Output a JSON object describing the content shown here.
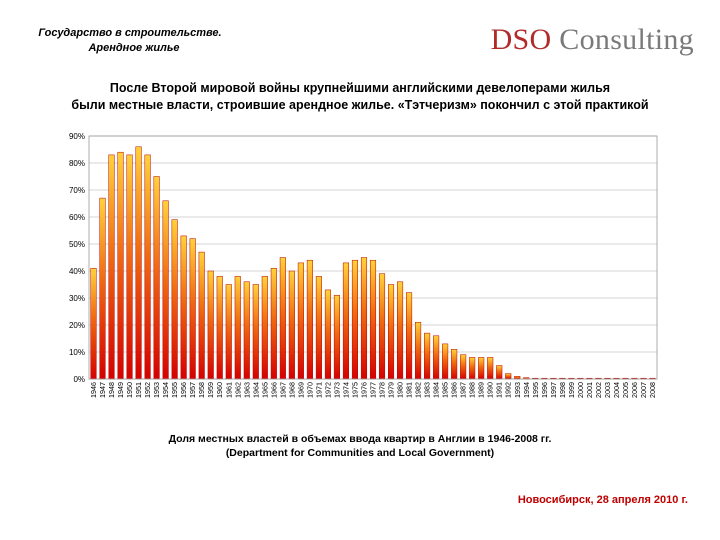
{
  "header": {
    "line1": "Государство в строительстве.",
    "line2": "Арендное жилье"
  },
  "logo": {
    "part1": "DSO",
    "part2": "Consulting"
  },
  "title": {
    "line1": "После Второй мировой войны крупнейшими английскими девелоперами жилья",
    "line2": "были местные власти, строившие арендное жилье. «Тэтчеризм» покончил с этой практикой"
  },
  "caption": {
    "line1": "Доля местных властей в объемах ввода квартир в Англии в 1946-2008 гг.",
    "line2": "(Department for Communities and Local Government)"
  },
  "footer": "Новосибирск, 28 апреля 2010 г.",
  "chart_data": {
    "type": "bar",
    "title": "",
    "xlabel": "",
    "ylabel": "",
    "ylim": [
      0,
      90
    ],
    "yticks": [
      0,
      10,
      20,
      30,
      40,
      50,
      60,
      70,
      80,
      90
    ],
    "ytick_labels": [
      "0%",
      "10%",
      "20%",
      "30%",
      "40%",
      "50%",
      "60%",
      "70%",
      "80%",
      "90%"
    ],
    "grid": true,
    "legend": "none",
    "bar_colors": {
      "top": "#ffd23a",
      "bottom": "#d40000",
      "outline": "#b80000"
    },
    "categories": [
      "1946",
      "1947",
      "1948",
      "1949",
      "1950",
      "1951",
      "1952",
      "1953",
      "1954",
      "1955",
      "1956",
      "1957",
      "1958",
      "1959",
      "1960",
      "1961",
      "1962",
      "1963",
      "1964",
      "1965",
      "1966",
      "1967",
      "1968",
      "1969",
      "1970",
      "1971",
      "1972",
      "1973",
      "1974",
      "1975",
      "1976",
      "1977",
      "1978",
      "1979",
      "1980",
      "1981",
      "1982",
      "1983",
      "1984",
      "1985",
      "1986",
      "1987",
      "1988",
      "1989",
      "1990",
      "1991",
      "1992",
      "1993",
      "1994",
      "1995",
      "1996",
      "1997",
      "1998",
      "1999",
      "2000",
      "2001",
      "2002",
      "2003",
      "2004",
      "2005",
      "2006",
      "2007",
      "2008"
    ],
    "values": [
      41,
      67,
      83,
      84,
      83,
      86,
      83,
      75,
      66,
      59,
      53,
      52,
      47,
      40,
      38,
      35,
      38,
      36,
      35,
      38,
      41,
      45,
      40,
      43,
      44,
      38,
      33,
      31,
      43,
      44,
      45,
      44,
      39,
      35,
      36,
      32,
      21,
      17,
      16,
      13,
      11,
      9,
      8,
      8,
      8,
      5,
      2,
      1,
      0.5,
      0.3,
      0.2,
      0.2,
      0.2,
      0.2,
      0.3,
      0.3,
      0.3,
      0.3,
      0.3,
      0.3,
      0.3,
      0.3,
      0.3
    ]
  }
}
